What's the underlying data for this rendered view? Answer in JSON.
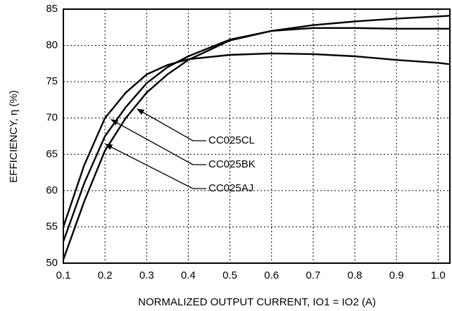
{
  "chart_data": {
    "type": "line",
    "xlabel": "NORMALIZED OUTPUT CURRENT, IO1 = IO2 (A)",
    "ylabel": "EFFICIENCY, η (%)",
    "x": [
      0.1,
      0.15,
      0.2,
      0.25,
      0.3,
      0.35,
      0.4,
      0.5,
      0.6,
      0.7,
      0.8,
      0.9,
      1.0,
      1.03
    ],
    "series": [
      {
        "name": "CC025CL",
        "color": "#000000",
        "values": [
          50.5,
          58.5,
          65.5,
          70,
          73.5,
          76,
          78,
          80.7,
          82,
          82.8,
          83.3,
          83.7,
          84,
          84.1
        ]
      },
      {
        "name": "CC025BK",
        "color": "#000000",
        "values": [
          55,
          63.5,
          70,
          73.5,
          76,
          77.3,
          78.1,
          78.7,
          78.9,
          78.8,
          78.5,
          78,
          77.6,
          77.4
        ]
      },
      {
        "name": "CC025AJ",
        "color": "#000000",
        "values": [
          53,
          61,
          67.5,
          71.5,
          74.8,
          77,
          78.5,
          80.8,
          82,
          82.4,
          82.4,
          82.3,
          82.3,
          82.3
        ]
      }
    ],
    "xlim": [
      0.1,
      1.03
    ],
    "ylim": [
      50,
      85
    ],
    "xticks": [
      0.1,
      0.2,
      0.3,
      0.4,
      0.5,
      0.6,
      0.7,
      0.8,
      0.9,
      {
        "value": 1.0,
        "label": "1.0"
      }
    ],
    "yticks": [
      50,
      55,
      60,
      65,
      70,
      75,
      80,
      85
    ],
    "grid": true
  }
}
